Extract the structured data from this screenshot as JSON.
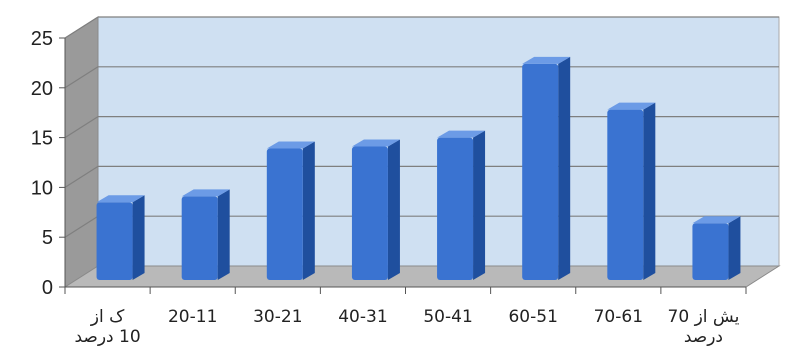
{
  "chart_data": {
    "type": "bar",
    "title": "",
    "xlabel": "",
    "ylabel": "",
    "categories": [
      [
        "ک     از",
        "10 درصد"
      ],
      [
        "20-11"
      ],
      [
        "30-21"
      ],
      [
        "40-31"
      ],
      [
        "50-41"
      ],
      [
        "60-51"
      ],
      [
        "70-61"
      ],
      [
        "یش از 70",
        "درصد"
      ]
    ],
    "values": [
      7.8,
      8.4,
      13.2,
      13.4,
      14.3,
      21.7,
      17.1,
      5.7
    ],
    "ylim": [
      0,
      25
    ],
    "yticks": [
      0,
      5,
      10,
      15,
      20,
      25
    ],
    "grid": true,
    "style": "3d-column",
    "colors": {
      "bar_front": "#3a73d1",
      "bar_side": "#1f4f9e",
      "bar_top": "#6c9be6",
      "back_wall": "#cfe0f2",
      "side_wall": "#9a9a9a",
      "floor": "#b9b9b9",
      "gridline": "#7f7f7f"
    }
  }
}
